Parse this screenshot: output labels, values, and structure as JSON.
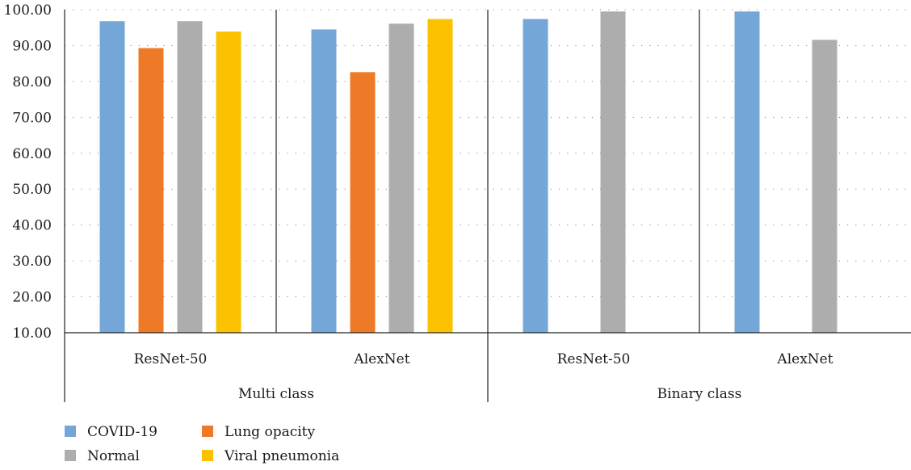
{
  "chart_data": {
    "type": "bar",
    "ylim": [
      10,
      100
    ],
    "yticks": [
      "10.00",
      "20.00",
      "30.00",
      "40.00",
      "50.00",
      "60.00",
      "70.00",
      "80.00",
      "90.00",
      "100.00"
    ],
    "grid": "dotted horizontal",
    "groups": [
      {
        "name": "Multi class",
        "subgroups": [
          {
            "name": "ResNet-50",
            "series": [
              "COVID-19",
              "Lung opacity",
              "Normal",
              "Viral pneumonia"
            ],
            "values": [
              96.8,
              89.3,
              96.8,
              93.9
            ]
          },
          {
            "name": "AlexNet",
            "series": [
              "COVID-19",
              "Lung opacity",
              "Normal",
              "Viral pneumonia"
            ],
            "values": [
              94.5,
              82.6,
              96.1,
              97.4
            ]
          }
        ]
      },
      {
        "name": "Binary class",
        "subgroups": [
          {
            "name": "ResNet-50",
            "series": [
              "COVID-19",
              "Normal"
            ],
            "values": [
              97.4,
              99.5
            ]
          },
          {
            "name": "AlexNet",
            "series": [
              "COVID-19",
              "Normal"
            ],
            "values": [
              99.5,
              91.6
            ]
          }
        ]
      }
    ],
    "legend": {
      "placement": "bottom-left",
      "items": [
        {
          "name": "COVID-19",
          "color": "#74a7d8"
        },
        {
          "name": "Lung opacity",
          "color": "#ee7a28"
        },
        {
          "name": "Normal",
          "color": "#adadad"
        },
        {
          "name": "Viral pneumonia",
          "color": "#fcc201"
        }
      ]
    }
  }
}
